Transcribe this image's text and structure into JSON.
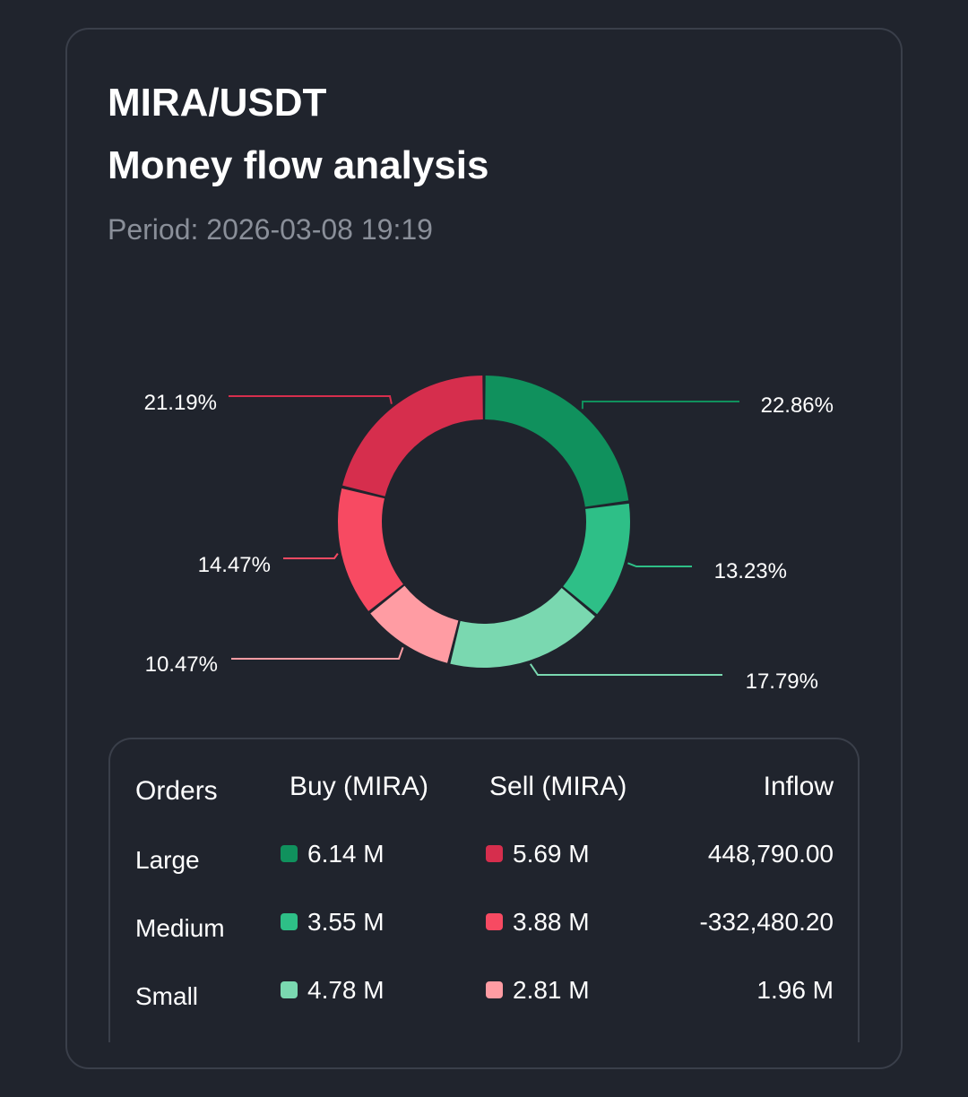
{
  "header": {
    "pair": "MIRA/USDT",
    "title": "Money flow analysis",
    "period": "Period: 2026-03-08 19:19"
  },
  "chart_data": {
    "type": "pie",
    "donut": true,
    "slices": [
      {
        "label": "22.86%",
        "value": 22.86,
        "color": "#10915d"
      },
      {
        "label": "13.23%",
        "value": 13.23,
        "color": "#2ebf87"
      },
      {
        "label": "17.79%",
        "value": 17.79,
        "color": "#7ad8b0"
      },
      {
        "label": "10.47%",
        "value": 10.47,
        "color": "#ff9ca3"
      },
      {
        "label": "14.47%",
        "value": 14.47,
        "color": "#f74a62"
      },
      {
        "label": "21.19%",
        "value": 21.19,
        "color": "#d62e4d"
      }
    ]
  },
  "table": {
    "headers": {
      "orders": "Orders",
      "buy": "Buy (MIRA)",
      "sell": "Sell (MIRA)",
      "inflow": "Inflow"
    },
    "rows": [
      {
        "order": "Large",
        "buy": "6.14 M",
        "sell": "5.69 M",
        "inflow": "448,790.00",
        "buy_color": "#10915d",
        "sell_color": "#d62e4d"
      },
      {
        "order": "Medium",
        "buy": "3.55 M",
        "sell": "3.88 M",
        "inflow": "-332,480.20",
        "buy_color": "#2ebf87",
        "sell_color": "#f74a62"
      },
      {
        "order": "Small",
        "buy": "4.78 M",
        "sell": "2.81 M",
        "inflow": "1.96 M",
        "buy_color": "#7ad8b0",
        "sell_color": "#ff9ca3"
      }
    ]
  }
}
